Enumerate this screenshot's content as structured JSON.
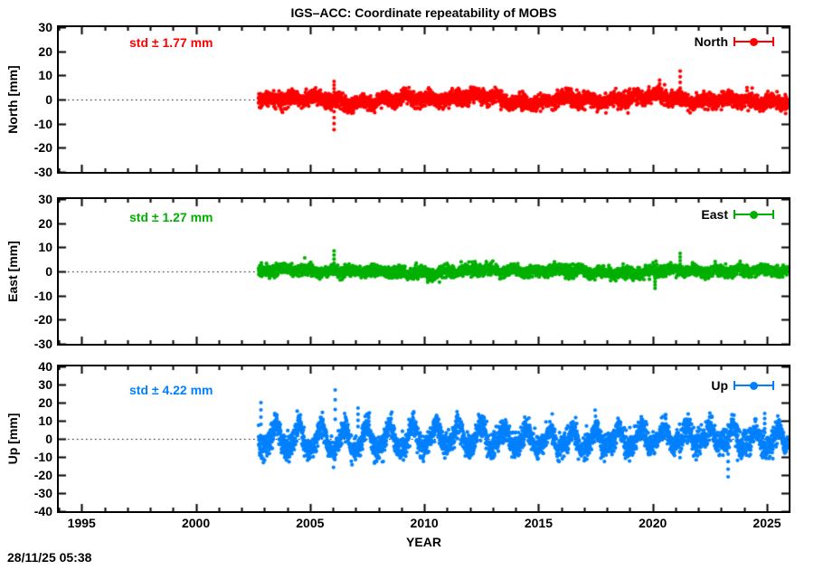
{
  "title": "IGS–ACC: Coordinate repeatability of MOBS",
  "xlabel": "YEAR",
  "timestamp": "28/11/25 05:38",
  "axes": {
    "xlim": [
      1994.0,
      2025.95
    ],
    "xticks": [
      1995,
      2000,
      2005,
      2010,
      2015,
      2020,
      2025
    ],
    "xtick_minor_step": 1,
    "grid": "off",
    "zero_line_style": "dotted"
  },
  "chart_data": [
    {
      "type": "scatter",
      "name": "North",
      "legend_label": "North",
      "ylabel": "North [mm]",
      "std_label": "std ± 1.77 mm",
      "std_mm": 1.77,
      "color": "#ff0000",
      "ylim": [
        -30,
        30
      ],
      "yticks": [
        30,
        20,
        10,
        0,
        -10,
        -20,
        -30
      ],
      "x_range_data": [
        2002.75,
        2025.92
      ],
      "noise_sd": 1.55,
      "components": [
        {
          "period": 1.0,
          "amp": 0.9,
          "phase": 0.1
        },
        {
          "period": 3.7,
          "amp": 0.8,
          "phase": 2.0
        },
        {
          "period": 8.5,
          "amp": 0.8,
          "phase": 4.0
        }
      ],
      "outliers": [
        [
          2006.05,
          7.5
        ],
        [
          2006.05,
          -12.5
        ],
        [
          2020.3,
          8.0
        ],
        [
          2021.2,
          11.8
        ]
      ]
    },
    {
      "type": "scatter",
      "name": "East",
      "legend_label": "East",
      "ylabel": "East [mm]",
      "std_label": "std ± 1.27 mm",
      "std_mm": 1.27,
      "color": "#00b000",
      "ylim": [
        -30,
        30
      ],
      "yticks": [
        30,
        20,
        10,
        0,
        -10,
        -20,
        -30
      ],
      "x_range_data": [
        2002.75,
        2025.92
      ],
      "noise_sd": 1.15,
      "components": [
        {
          "period": 1.0,
          "amp": 0.7,
          "phase": 2.5
        },
        {
          "period": 4.2,
          "amp": 0.5,
          "phase": 1.0
        },
        {
          "period": 9.0,
          "amp": 0.5,
          "phase": 3.0
        }
      ],
      "outliers": [
        [
          2006.05,
          8.5
        ],
        [
          2010.15,
          -4.5
        ],
        [
          2020.1,
          -7.0
        ],
        [
          2021.2,
          7.5
        ]
      ]
    },
    {
      "type": "scatter",
      "name": "Up",
      "legend_label": "Up",
      "ylabel": "Up [mm]",
      "std_label": "std ± 4.22 mm",
      "std_mm": 4.22,
      "color": "#0080ff",
      "ylim": [
        -40,
        40
      ],
      "yticks": [
        40,
        30,
        20,
        10,
        0,
        -10,
        -20,
        -30,
        -40
      ],
      "x_range_data": [
        2002.75,
        2025.92
      ],
      "noise_sd": 3.3,
      "components": [
        {
          "period": 1.0,
          "amp_early": 6.5,
          "amp_late": 4.8,
          "break_year": 2013,
          "phase": 4.8
        },
        {
          "period": 0.5,
          "amp": 1.6,
          "phase": 1.2
        },
        {
          "period": 10.0,
          "amp": 1.0,
          "phase": 0.5
        }
      ],
      "outliers": [
        [
          2002.85,
          20.0
        ],
        [
          2006.1,
          27.0
        ],
        [
          2007.1,
          17.0
        ],
        [
          2023.3,
          -21.0
        ],
        [
          2024.9,
          14.0
        ]
      ]
    }
  ]
}
